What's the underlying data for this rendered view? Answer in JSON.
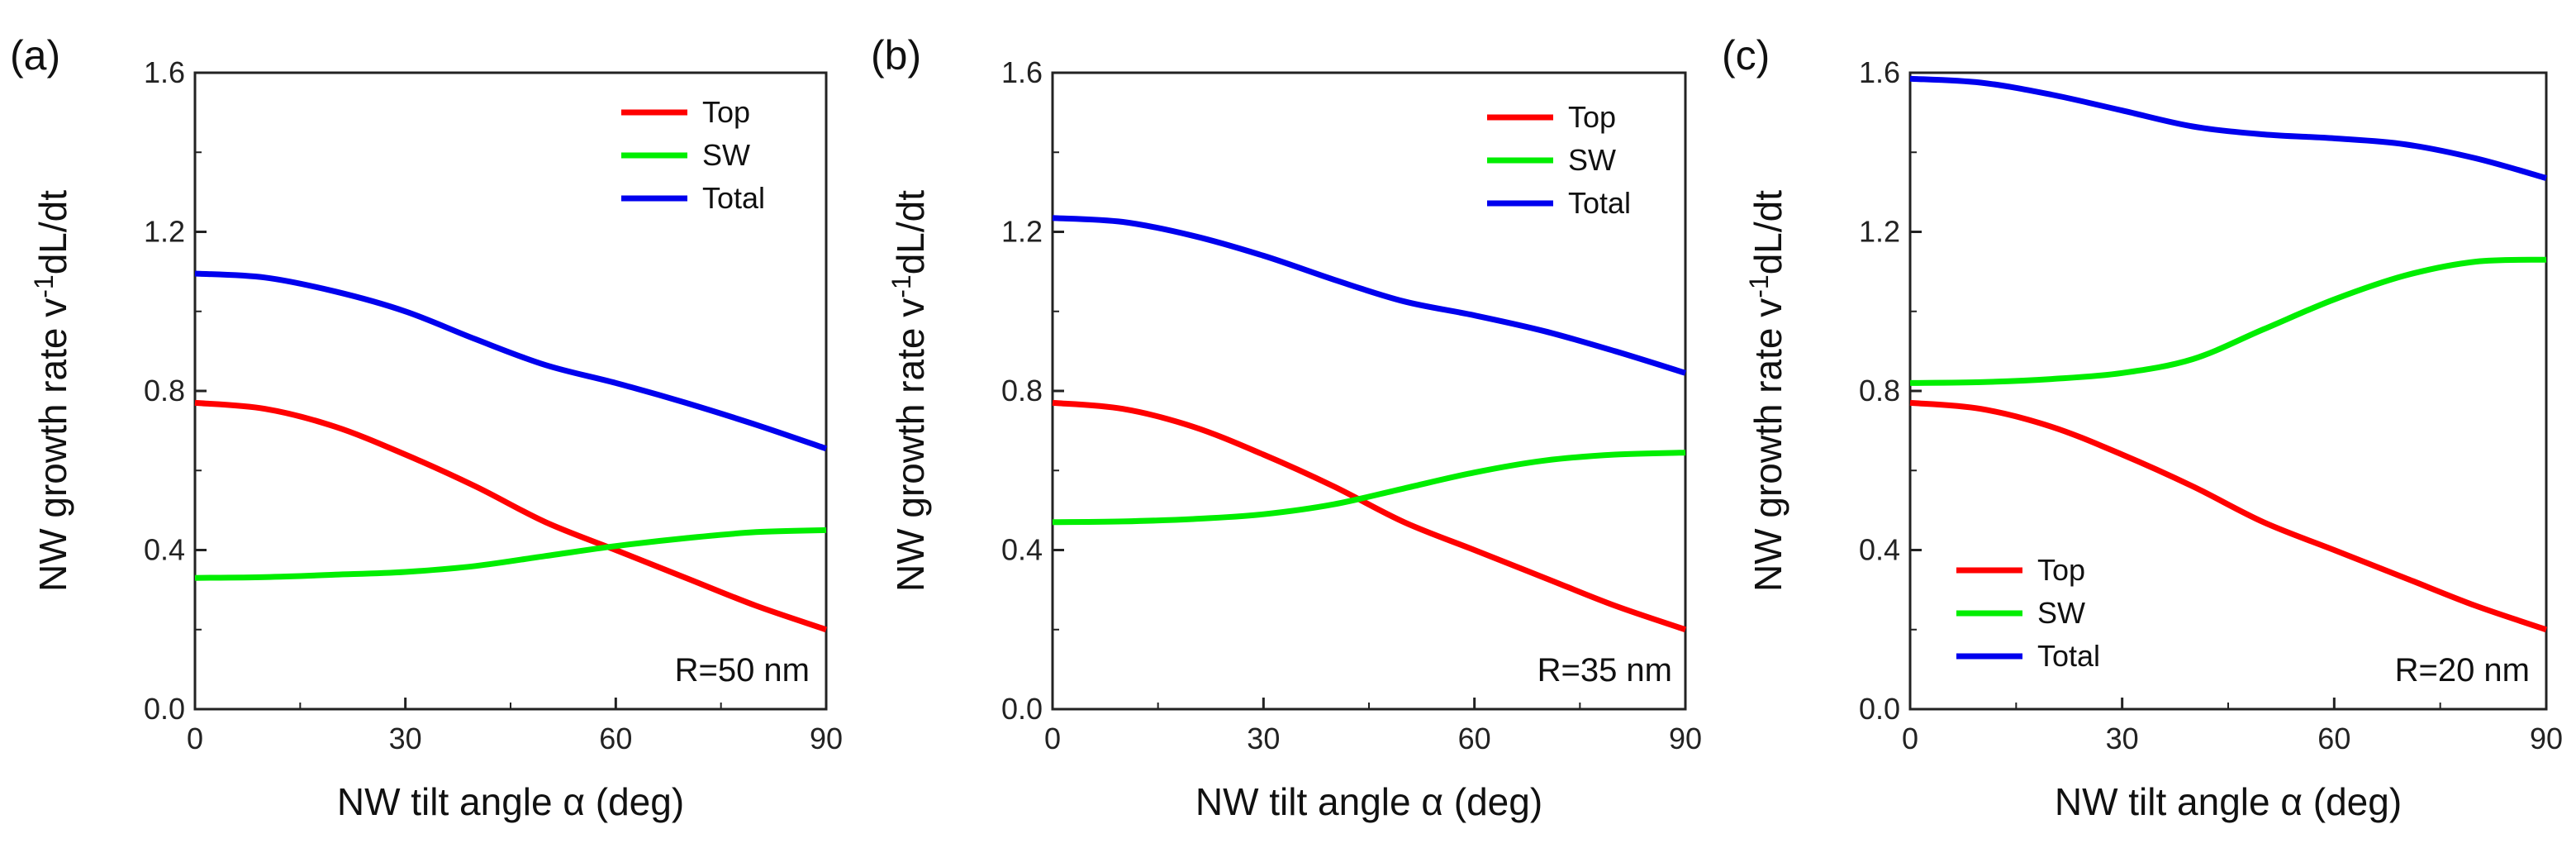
{
  "figure": {
    "xlabel": "NW tilt angle α (deg)",
    "ylabel_main": "NW growth rate v",
    "ylabel_sup": "-1",
    "ylabel_tail": "dL/dt"
  },
  "chart_data": [
    {
      "type": "line",
      "panel_label": "(a)",
      "annotation": "R=50 nm",
      "legend_position": "top-right",
      "xlabel": "NW tilt angle α (deg)",
      "ylabel": "NW growth rate v-1dL/dt",
      "xlim": [
        0,
        90
      ],
      "ylim": [
        0,
        1.6
      ],
      "xticks": [
        0,
        30,
        60,
        90
      ],
      "xtick_labels": [
        "0",
        "30",
        "60",
        "90"
      ],
      "yticks": [
        0,
        0.4,
        0.8,
        1.2,
        1.6
      ],
      "ytick_labels": [
        "0.0",
        "0.4",
        "0.8",
        "1.2",
        "1.6"
      ],
      "x": [
        0,
        10,
        20,
        30,
        40,
        50,
        60,
        70,
        80,
        90
      ],
      "series": [
        {
          "name": "Top",
          "color": "#ff0000",
          "values": [
            0.77,
            0.755,
            0.71,
            0.64,
            0.56,
            0.47,
            0.4,
            0.33,
            0.26,
            0.2
          ]
        },
        {
          "name": "SW",
          "color": "#00ee00",
          "values": [
            0.33,
            0.332,
            0.338,
            0.345,
            0.36,
            0.385,
            0.41,
            0.43,
            0.445,
            0.45
          ]
        },
        {
          "name": "Total",
          "color": "#0000ee",
          "values": [
            1.095,
            1.085,
            1.05,
            1.0,
            0.93,
            0.865,
            0.82,
            0.77,
            0.715,
            0.655
          ]
        }
      ]
    },
    {
      "type": "line",
      "panel_label": "(b)",
      "annotation": "R=35 nm",
      "legend_position": "top-right",
      "xlabel": "NW tilt angle α (deg)",
      "ylabel": "NW growth rate v-1dL/dt",
      "xlim": [
        0,
        90
      ],
      "ylim": [
        0,
        1.6
      ],
      "xticks": [
        0,
        30,
        60,
        90
      ],
      "xtick_labels": [
        "0",
        "30",
        "60",
        "90"
      ],
      "yticks": [
        0,
        0.4,
        0.8,
        1.2,
        1.6
      ],
      "ytick_labels": [
        "0.0",
        "0.4",
        "0.8",
        "1.2",
        "1.6"
      ],
      "x": [
        0,
        10,
        20,
        30,
        40,
        50,
        60,
        70,
        80,
        90
      ],
      "series": [
        {
          "name": "Top",
          "color": "#ff0000",
          "values": [
            0.77,
            0.755,
            0.71,
            0.64,
            0.56,
            0.47,
            0.4,
            0.33,
            0.26,
            0.2
          ]
        },
        {
          "name": "SW",
          "color": "#00ee00",
          "values": [
            0.47,
            0.472,
            0.478,
            0.49,
            0.515,
            0.555,
            0.595,
            0.625,
            0.64,
            0.645
          ]
        },
        {
          "name": "Total",
          "color": "#0000ee",
          "values": [
            1.235,
            1.225,
            1.19,
            1.14,
            1.08,
            1.025,
            0.99,
            0.95,
            0.9,
            0.845
          ]
        }
      ]
    },
    {
      "type": "line",
      "panel_label": "(c)",
      "annotation": "R=20 nm",
      "legend_position": "bottom-left",
      "xlabel": "NW tilt angle α (deg)",
      "ylabel": "NW growth rate v-1dL/dt",
      "xlim": [
        0,
        90
      ],
      "ylim": [
        0,
        1.6
      ],
      "xticks": [
        0,
        30,
        60,
        90
      ],
      "xtick_labels": [
        "0",
        "30",
        "60",
        "90"
      ],
      "yticks": [
        0,
        0.4,
        0.8,
        1.2,
        1.6
      ],
      "ytick_labels": [
        "0.0",
        "0.4",
        "0.8",
        "1.2",
        "1.6"
      ],
      "x": [
        0,
        10,
        20,
        30,
        40,
        50,
        60,
        70,
        80,
        90
      ],
      "series": [
        {
          "name": "Top",
          "color": "#ff0000",
          "values": [
            0.77,
            0.755,
            0.71,
            0.64,
            0.56,
            0.47,
            0.4,
            0.33,
            0.26,
            0.2
          ]
        },
        {
          "name": "SW",
          "color": "#00ee00",
          "values": [
            0.82,
            0.822,
            0.83,
            0.845,
            0.88,
            0.955,
            1.03,
            1.09,
            1.125,
            1.13
          ]
        },
        {
          "name": "Total",
          "color": "#0000ee",
          "values": [
            1.585,
            1.575,
            1.545,
            1.505,
            1.465,
            1.445,
            1.435,
            1.42,
            1.385,
            1.335
          ]
        }
      ]
    }
  ]
}
